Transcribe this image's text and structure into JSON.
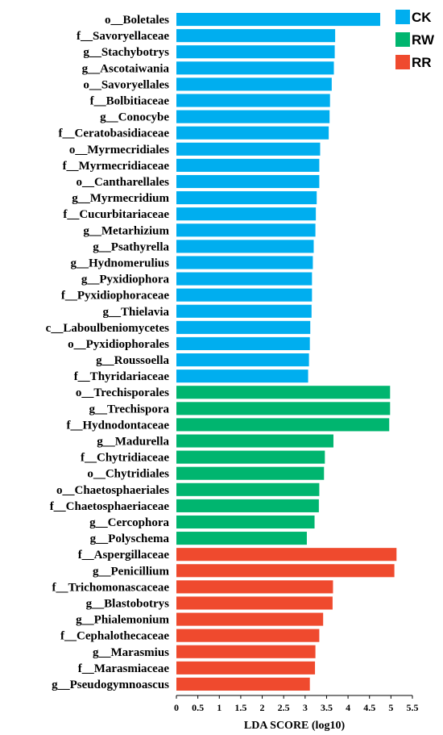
{
  "chart_data": {
    "type": "bar",
    "orientation": "horizontal",
    "xlabel": "LDA SCORE (log10)",
    "xlim": [
      0,
      5.5
    ],
    "xticks": [
      "0",
      "0.5",
      "1",
      "1.5",
      "2",
      "2.5",
      "3",
      "3.5",
      "4",
      "4.5",
      "5",
      "5.5"
    ],
    "legend_position": "top-right",
    "series": [
      {
        "name": "CK",
        "color": "#00aeef",
        "categories": [
          "o__Boletales",
          "f__Savoryellaceae",
          "g__Stachybotrys",
          "g__Ascotaiwania",
          "o__Savoryellales",
          "f__Bolbitiaceae",
          "g__Conocybe",
          "f__Ceratobasidiaceae",
          "o__Myrmecridiales",
          "f__Myrmecridiaceae",
          "o__Cantharellales",
          "g__Myrmecridium",
          "f__Cucurbitariaceae",
          "g__Metarhizium",
          "g__Psathyrella",
          "g__Hydnomerulius",
          "g__Pyxidiophora",
          "f__Pyxidiophoraceae",
          "g__Thielavia",
          "c__Laboulbeniomycetes",
          "o__Pyxidiophorales",
          "g__Roussoella",
          "f__Thyridariaceae"
        ],
        "values": [
          4.75,
          3.7,
          3.69,
          3.67,
          3.62,
          3.58,
          3.57,
          3.55,
          3.35,
          3.33,
          3.33,
          3.27,
          3.25,
          3.24,
          3.2,
          3.18,
          3.16,
          3.16,
          3.15,
          3.12,
          3.11,
          3.09,
          3.07
        ]
      },
      {
        "name": "RW",
        "color": "#00b56f",
        "categories": [
          "o__Trechisporales",
          "g__Trechispora",
          "f__Hydnodontaceae",
          "g__Madurella",
          "f__Chytridiaceae",
          "o__Chytridiales",
          "o__Chaetosphaeriales",
          "f__Chaetosphaeriaceae",
          "g__Cercophora",
          "g__Polyschema"
        ],
        "values": [
          4.98,
          4.98,
          4.96,
          3.66,
          3.46,
          3.44,
          3.33,
          3.32,
          3.22,
          3.04
        ]
      },
      {
        "name": "RR",
        "color": "#ef4a2e",
        "categories": [
          "f__Aspergillaceae",
          "g__Penicillium",
          "f__Trichomonascaceae",
          "g__Blastobotrys",
          "g__Phialemonium",
          "f__Cephalothecaceae",
          "g__Marasmius",
          "f__Marasmiaceae",
          "g__Pseudogymnoascus"
        ],
        "values": [
          5.13,
          5.08,
          3.65,
          3.64,
          3.42,
          3.33,
          3.24,
          3.23,
          3.11
        ]
      }
    ]
  }
}
